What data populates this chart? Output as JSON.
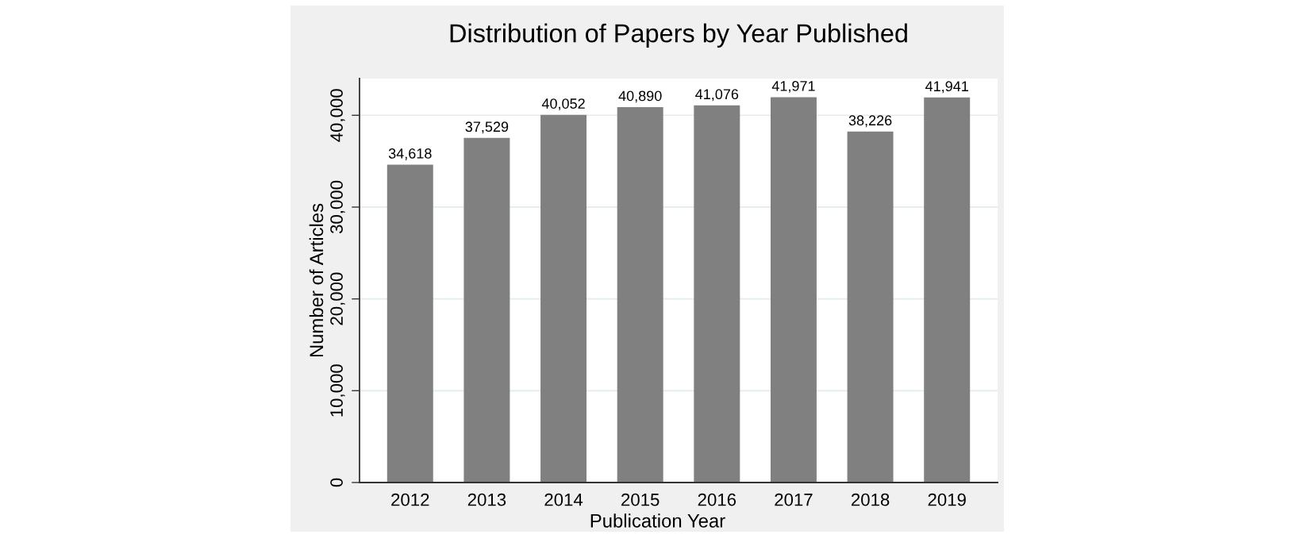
{
  "chart_data": {
    "type": "bar",
    "title": "Distribution of Papers by Year Published",
    "xlabel": "Publication Year",
    "ylabel": "Number of Articles",
    "categories": [
      "2012",
      "2013",
      "2014",
      "2015",
      "2016",
      "2017",
      "2018",
      "2019"
    ],
    "values": [
      34618,
      37529,
      40052,
      40890,
      41076,
      41971,
      38226,
      41941
    ],
    "value_labels": [
      "34,618",
      "37,529",
      "40,052",
      "40,890",
      "41,076",
      "41,971",
      "38,226",
      "41,941"
    ],
    "color": "#808080",
    "ylim": [
      0,
      44000
    ],
    "yticks": [
      0,
      {
        "value": 10000,
        "label": "10,000"
      },
      {
        "value": 20000,
        "label": "20,000"
      },
      {
        "value": 30000,
        "label": "30,000"
      },
      {
        "value": 40000,
        "label": "40,000"
      }
    ],
    "grid": "y"
  }
}
